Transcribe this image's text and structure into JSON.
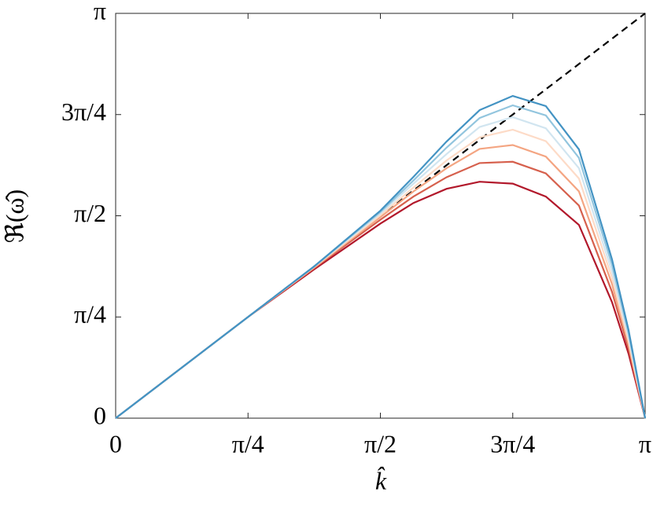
{
  "chart_data": {
    "type": "line",
    "xlabel": "k̂",
    "ylabel": "ℜ(ω̂)",
    "x": [
      0,
      0.7854,
      1.1781,
      1.5708,
      1.7671,
      1.9635,
      2.1598,
      2.3562,
      2.5525,
      2.7489,
      2.9452,
      3.0434,
      3.1416
    ],
    "series": [
      {
        "color": "#000000",
        "style": "dashed",
        "values": [
          0,
          0.7854,
          1.1781,
          1.5708,
          1.7671,
          1.9635,
          2.1598,
          2.3562,
          2.5525,
          2.7489,
          2.9452,
          3.0434,
          3.1416
        ]
      },
      {
        "color": "#b2182b",
        "values": [
          0,
          0.7854,
          1.155,
          1.51,
          1.67,
          1.78,
          1.835,
          1.82,
          1.72,
          1.5,
          0.9,
          0.5,
          0
        ]
      },
      {
        "color": "#d6604d",
        "values": [
          0,
          0.7854,
          1.165,
          1.54,
          1.72,
          1.87,
          1.98,
          1.99,
          1.9,
          1.65,
          0.98,
          0.54,
          0
        ]
      },
      {
        "color": "#f4a582",
        "values": [
          0,
          0.7854,
          1.17,
          1.56,
          1.76,
          1.94,
          2.09,
          2.12,
          2.03,
          1.76,
          1.04,
          0.57,
          0
        ]
      },
      {
        "color": "#fddbc7",
        "values": [
          0,
          0.7854,
          1.175,
          1.575,
          1.79,
          2.0,
          2.18,
          2.239,
          2.15,
          1.86,
          1.09,
          0.6,
          0
        ]
      },
      {
        "color": "#d1e5f0",
        "values": [
          0,
          0.7854,
          1.178,
          1.59,
          1.82,
          2.05,
          2.26,
          2.336,
          2.25,
          1.94,
          1.14,
          0.63,
          0
        ]
      },
      {
        "color": "#92c5de",
        "values": [
          0,
          0.7854,
          1.1781,
          1.6,
          1.845,
          2.1,
          2.33,
          2.428,
          2.35,
          2.02,
          1.19,
          0.66,
          0
        ]
      },
      {
        "color": "#4393c3",
        "values": [
          0,
          0.7854,
          1.1781,
          1.61,
          1.873,
          2.147,
          2.391,
          2.501,
          2.422,
          2.086,
          1.232,
          0.683,
          0
        ]
      }
    ],
    "xlim": [
      0,
      3.1416
    ],
    "ylim": [
      0,
      3.1416
    ],
    "xticks": [
      0,
      {
        "value": 0.7854,
        "label": "π/4"
      },
      {
        "value": 1.5708,
        "label": "π/2"
      },
      {
        "value": 2.3562,
        "label": "3π/4"
      },
      {
        "value": 3.1416,
        "label": "π"
      }
    ],
    "yticks": [
      0,
      {
        "value": 0.7854,
        "label": "π/4"
      },
      {
        "value": 1.5708,
        "label": "π/2"
      },
      {
        "value": 2.3562,
        "label": "3π/4"
      },
      {
        "value": 3.1416,
        "label": "π"
      }
    ]
  }
}
